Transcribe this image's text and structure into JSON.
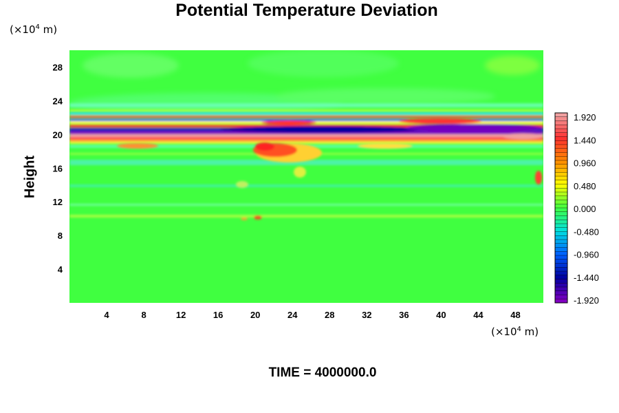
{
  "chart_data": {
    "type": "heatmap",
    "title": "Potential Temperature Deviation",
    "ylabel": "Height",
    "xlabel": "",
    "y_unit_prefix": "(×10",
    "y_unit_exp": "4",
    "y_unit_suffix": " m)",
    "x_unit_prefix": "(×10",
    "x_unit_exp": "4",
    "x_unit_suffix": " m)",
    "xlim": [
      0,
      51
    ],
    "ylim": [
      0,
      30
    ],
    "x_ticks": [
      4,
      8,
      12,
      16,
      20,
      24,
      28,
      32,
      36,
      40,
      44,
      48
    ],
    "y_ticks": [
      4,
      8,
      12,
      16,
      20,
      24,
      28
    ],
    "colorbar": {
      "range": [
        -1.92,
        1.92
      ],
      "ticks": [
        "1.920",
        "1.440",
        "0.960",
        "0.480",
        "0.000",
        "-0.480",
        "-0.960",
        "-1.440",
        "-1.920"
      ],
      "colors": [
        "#f0a0a0",
        "#ff3030",
        "#ff8c00",
        "#ffff00",
        "#40ff40",
        "#00e0e0",
        "#0060ff",
        "#0000a0",
        "#8000c0"
      ]
    },
    "features": [
      {
        "kind": "band",
        "y_center": 20.3,
        "description_value": -1.92
      },
      {
        "kind": "band",
        "y_center": 19.4,
        "description_value": 1.92
      },
      {
        "kind": "band",
        "y_center": 21.3,
        "description_value": -1.44
      },
      {
        "kind": "blob",
        "x": 22.5,
        "y": 18.0,
        "description_value": 1.44
      },
      {
        "kind": "band",
        "y_center": 10.2,
        "description_value": 0.48
      }
    ]
  },
  "footer": {
    "time_text": "TIME = 4000000.0"
  }
}
